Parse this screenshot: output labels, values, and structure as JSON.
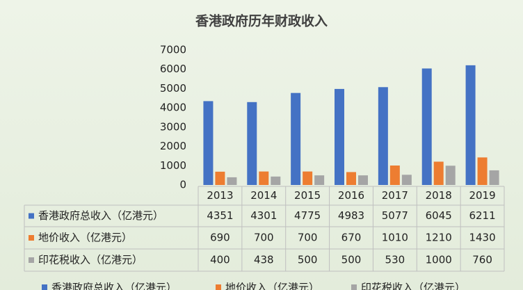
{
  "chart_data": {
    "type": "bar",
    "title": "香港政府历年财政收入",
    "categories": [
      "2013",
      "2014",
      "2015",
      "2016",
      "2017",
      "2018",
      "2019"
    ],
    "series": [
      {
        "name": "香港政府总收入（亿港元）",
        "color": "#4472c4",
        "values": [
          4351,
          4301,
          4775,
          4983,
          5077,
          6045,
          6211
        ]
      },
      {
        "name": "地价收入（亿港元）",
        "color": "#ed7d31",
        "values": [
          690,
          700,
          700,
          670,
          1010,
          1210,
          1430
        ]
      },
      {
        "name": "印花税收入（亿港元）",
        "color": "#a5a5a5",
        "values": [
          400,
          438,
          500,
          500,
          530,
          1000,
          760
        ]
      }
    ],
    "ylim": [
      0,
      7000
    ],
    "yticks": [
      0,
      1000,
      2000,
      3000,
      4000,
      5000,
      6000,
      7000
    ],
    "grid": false
  }
}
